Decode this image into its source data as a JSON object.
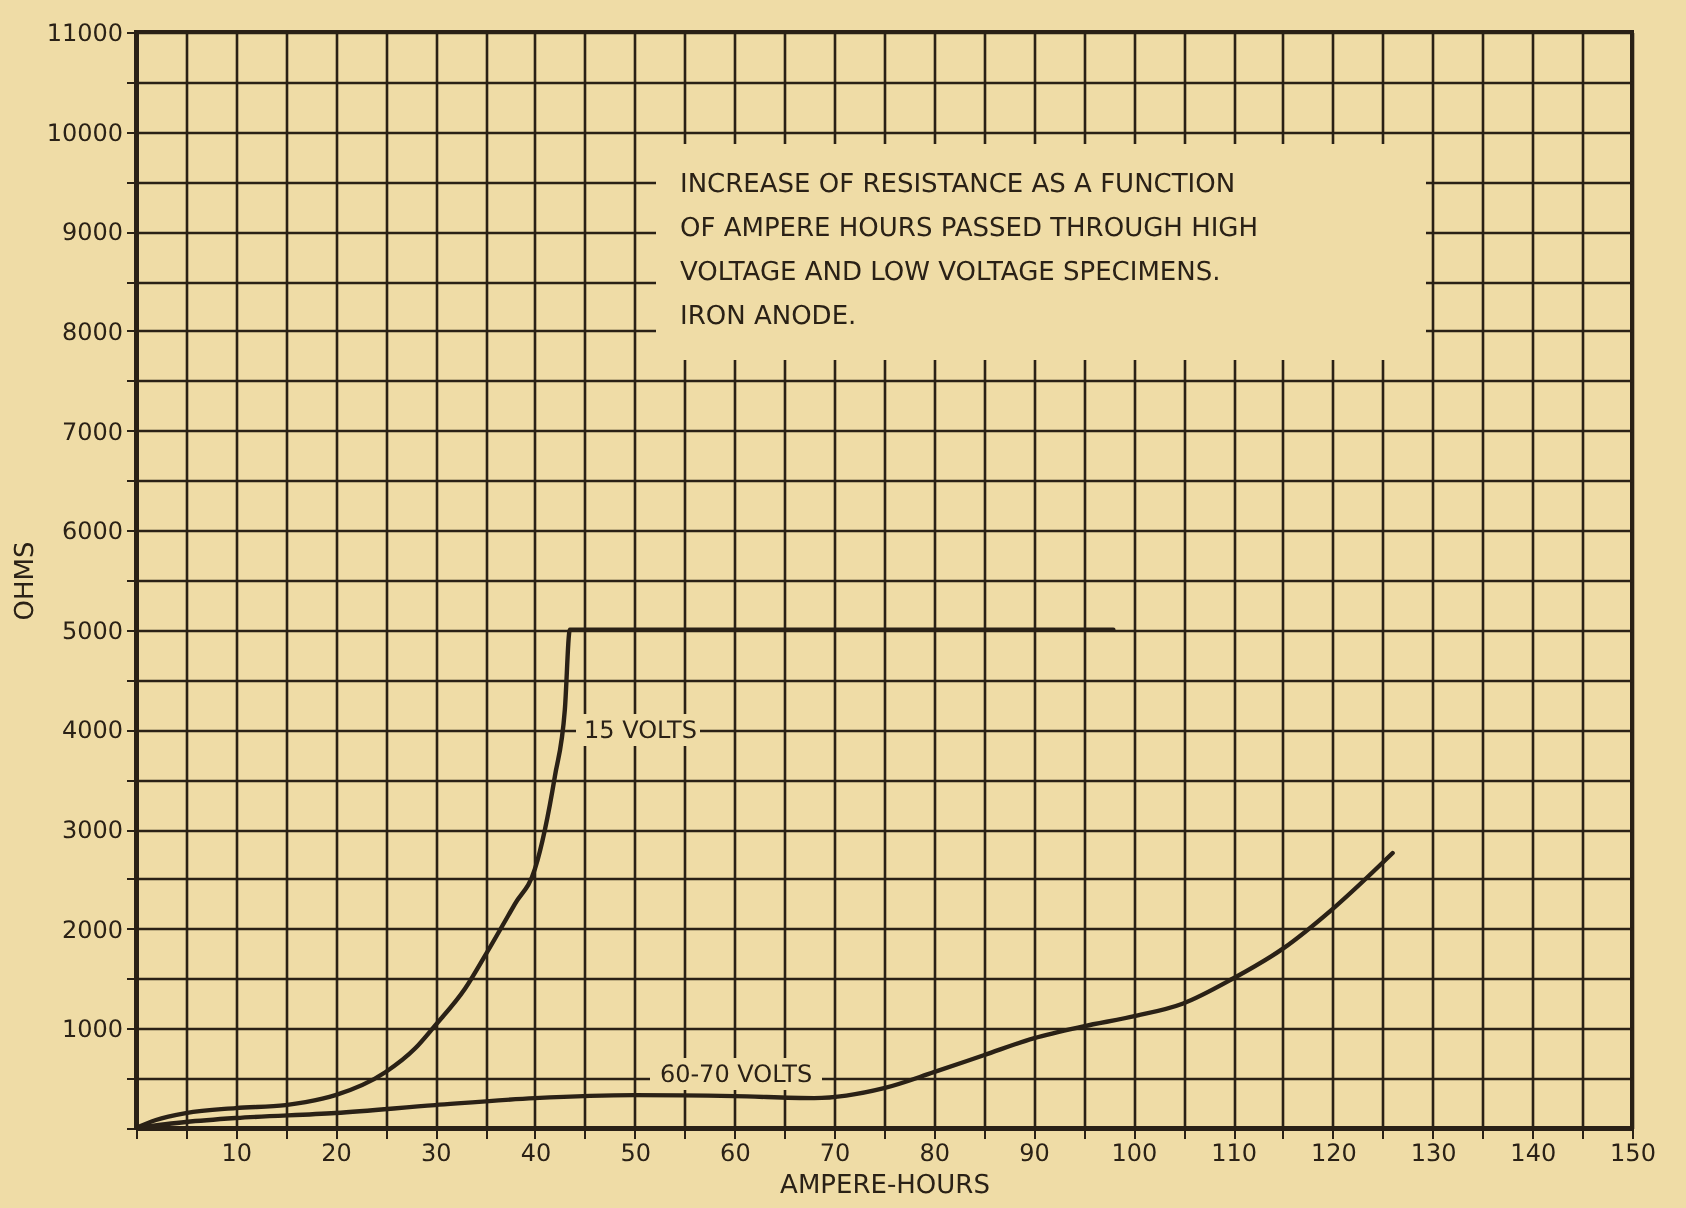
{
  "chart_data": {
    "type": "line",
    "xlabel": "AMPERE-HOURS",
    "ylabel": "OHMS",
    "annotations": [
      "INCREASE OF RESISTANCE AS A FUNCTION",
      "OF AMPERE HOURS PASSED THROUGH HIGH",
      "VOLTAGE AND LOW VOLTAGE SPECIMENS.",
      "IRON ANODE."
    ],
    "series": [
      {
        "name": "15 VOLTS",
        "color": "#2a2116",
        "x": [
          0,
          2,
          5,
          10,
          15,
          17,
          20,
          25,
          28,
          30,
          33,
          35,
          38,
          40,
          42,
          43,
          43.5,
          60,
          80,
          98
        ],
        "values": [
          0,
          80,
          150,
          200,
          230,
          260,
          330,
          560,
          800,
          1030,
          1400,
          1730,
          2250,
          2600,
          3530,
          4200,
          5000,
          5000,
          5000,
          5000
        ]
      },
      {
        "name": "60-70 VOLTS",
        "color": "#2a2116",
        "x": [
          0,
          5,
          10,
          20,
          30,
          40,
          50,
          60,
          68,
          75,
          80,
          85,
          90,
          95,
          100,
          105,
          110,
          115,
          120,
          126
        ],
        "values": [
          0,
          60,
          100,
          150,
          230,
          300,
          330,
          320,
          300,
          400,
          560,
          730,
          900,
          1020,
          1120,
          1250,
          1500,
          1800,
          2200,
          2760
        ]
      }
    ],
    "xlim": [
      0,
      150
    ],
    "ylim": [
      0,
      11000
    ],
    "xticks": [
      {
        "value": 0,
        "label": null
      },
      {
        "value": 5,
        "label": null
      },
      10,
      {
        "value": 15,
        "label": null
      },
      20,
      {
        "value": 25,
        "label": null
      },
      30,
      {
        "value": 35,
        "label": null
      },
      40,
      {
        "value": 45,
        "label": null
      },
      50,
      {
        "value": 55,
        "label": null
      },
      60,
      {
        "value": 65,
        "label": null
      },
      70,
      {
        "value": 75,
        "label": null
      },
      80,
      {
        "value": 85,
        "label": null
      },
      90,
      {
        "value": 95,
        "label": null
      },
      100,
      {
        "value": 105,
        "label": null
      },
      110,
      {
        "value": 115,
        "label": null
      },
      120,
      {
        "value": 125,
        "label": null
      },
      130,
      {
        "value": 135,
        "label": null
      },
      140,
      {
        "value": 145,
        "label": null
      },
      150
    ],
    "yticks": [
      {
        "value": 0,
        "label": null
      },
      {
        "value": 500,
        "label": null
      },
      1000,
      {
        "value": 1500,
        "label": null
      },
      2000,
      {
        "value": 2500,
        "label": null
      },
      3000,
      {
        "value": 3500,
        "label": null
      },
      4000,
      {
        "value": 4500,
        "label": null
      },
      5000,
      {
        "value": 5500,
        "label": null
      },
      6000,
      {
        "value": 6500,
        "label": null
      },
      7000,
      {
        "value": 7500,
        "label": null
      },
      8000,
      {
        "value": 8500,
        "label": null
      },
      9000,
      {
        "value": 9500,
        "label": null
      },
      10000,
      {
        "value": 10500,
        "label": null
      },
      11000
    ],
    "grid": true,
    "legend": false,
    "marker": "none",
    "line_style": "solid"
  }
}
